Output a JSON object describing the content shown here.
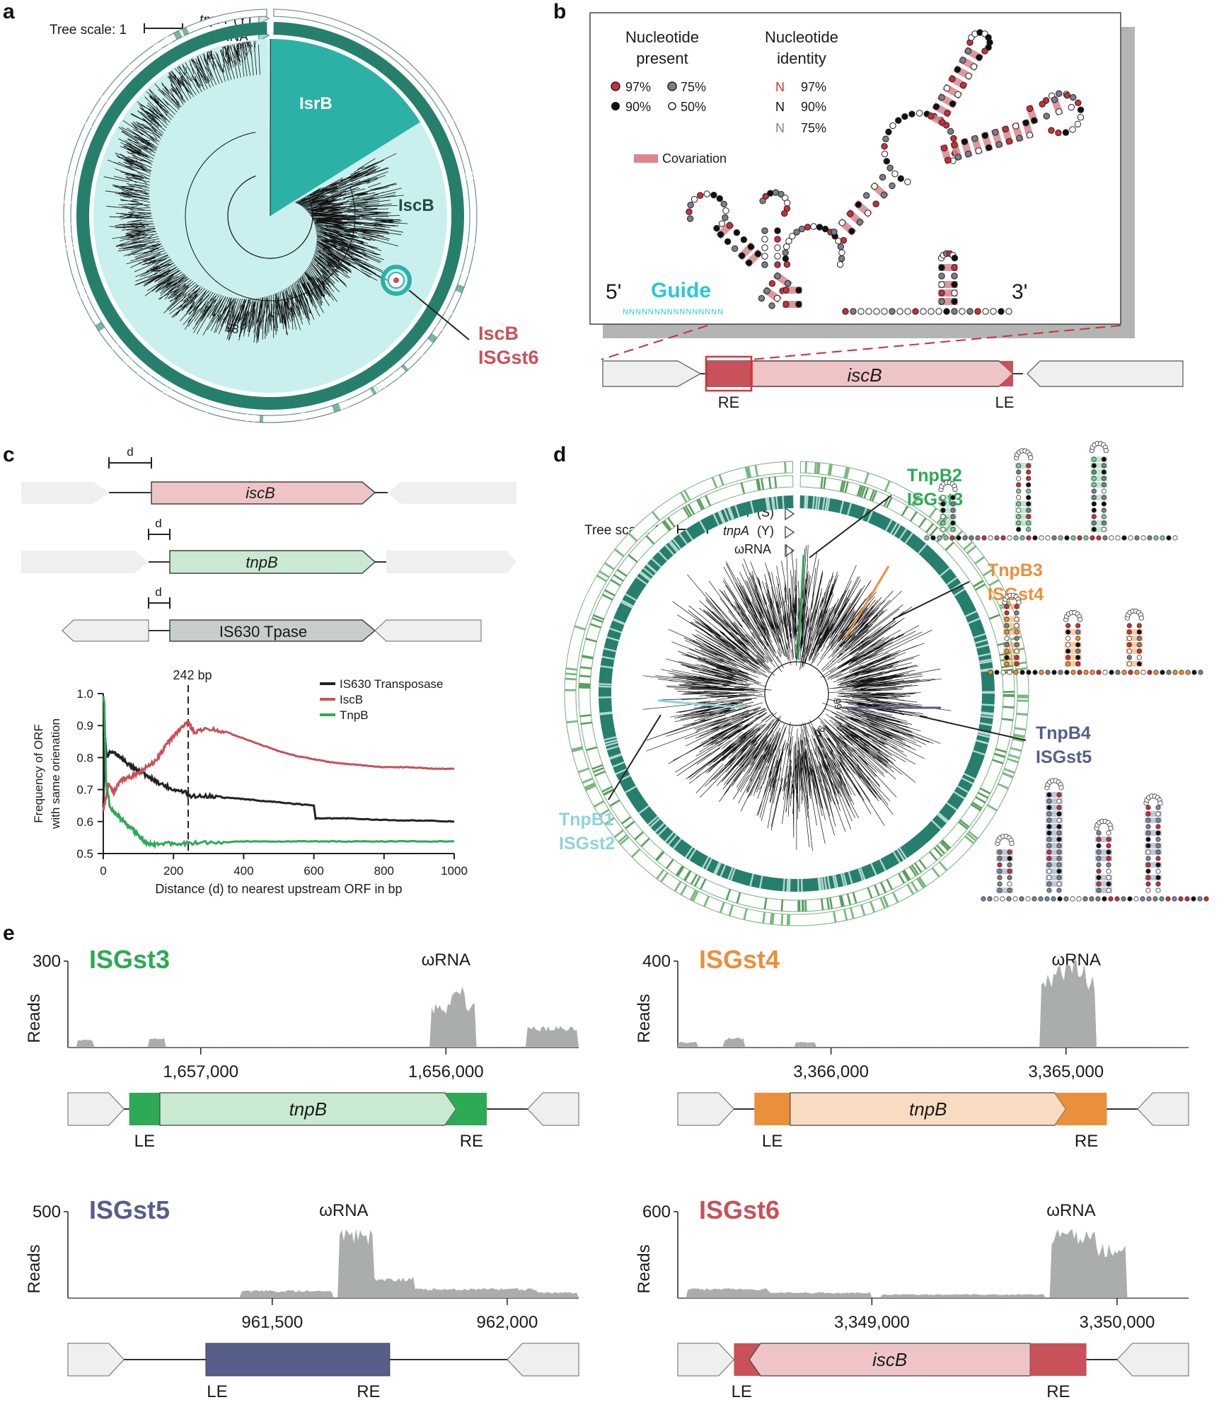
{
  "panels": {
    "a": "a",
    "b": "b",
    "c": "c",
    "d": "d",
    "e": "e"
  },
  "colors": {
    "teal_dark": "#267f6d",
    "teal_mid": "#2cb1a6",
    "teal_light": "#c9f0ef",
    "red": "#c8515a",
    "pink": "#eec4c6",
    "green": "#2ea955",
    "green_light": "#c9e9d1",
    "orange": "#ec8f3b",
    "orange_light": "#f8dcc2",
    "slate": "#565e8a",
    "gray_track": "#b5bcb9",
    "cyan_text": "#28c8d6"
  },
  "a": {
    "tree_scale": "Tree scale: 1",
    "ring_tnpA": "tnpA",
    "ring_tnpA_suffix": "(Y)",
    "ring_omega": "ωRNA",
    "clade_isrb": "IsrB",
    "clade_iscb": "IscB",
    "bootstrap": "98",
    "callout_1": "IscB",
    "callout_2": "ISGst6"
  },
  "b": {
    "legend_present_1": "Nucleotide",
    "legend_present_2": "present",
    "legend_identity_1": "Nucleotide",
    "legend_identity_2": "identity",
    "present_97": "97%",
    "present_75": "75%",
    "present_90": "90%",
    "present_50": "50%",
    "id_97_letter": "N",
    "id_97": "97%",
    "id_90_letter": "N",
    "id_90": "90%",
    "id_75_letter": "N",
    "id_75": "75%",
    "covariation": "Covariation",
    "five_prime": "5'",
    "three_prime": "3'",
    "guide": "Guide",
    "guide_seq": "NNNNNNNNNNNNNNNN",
    "gene": "iscB",
    "re": "RE",
    "le": "LE"
  },
  "c": {
    "d_label": "d",
    "genes": [
      "iscB",
      "tnpB",
      "IS630 Tpase"
    ],
    "bp_marker": "242 bp",
    "legend": [
      "IS630 Transposase",
      "IscB",
      "TnpB"
    ]
  },
  "chart_data": {
    "type": "line",
    "title": "",
    "xlabel": "Distance (d) to nearest upstream ORF in bp",
    "ylabel_1": "Frequency of ORF",
    "ylabel_2": "with same orienation",
    "xlim": [
      0,
      1000
    ],
    "ylim": [
      0.5,
      1.0
    ],
    "xticks": [
      0,
      200,
      400,
      600,
      800,
      1000
    ],
    "xtick_labels": [
      "0",
      "200",
      "400",
      "600",
      "800",
      "1000"
    ],
    "yticks": [
      0.5,
      0.6,
      0.7,
      0.8,
      0.9,
      1.0
    ],
    "ytick_labels": [
      "0.5",
      "0.6",
      "0.7",
      "0.8",
      "0.9",
      "1.0"
    ],
    "marker_x": 242,
    "series": [
      {
        "name": "IS630 Transposase",
        "color": "#222222",
        "x": [
          0,
          5,
          10,
          20,
          40,
          60,
          80,
          100,
          130,
          160,
          200,
          240,
          242,
          300,
          350,
          400,
          450,
          500,
          550,
          600,
          605,
          650,
          700,
          800,
          900,
          1000
        ],
        "y": [
          0.65,
          0.86,
          0.8,
          0.82,
          0.81,
          0.79,
          0.77,
          0.76,
          0.74,
          0.72,
          0.7,
          0.69,
          0.68,
          0.68,
          0.675,
          0.67,
          0.665,
          0.66,
          0.655,
          0.65,
          0.61,
          0.61,
          0.61,
          0.605,
          0.603,
          0.6
        ]
      },
      {
        "name": "IscB",
        "color": "#c8515a",
        "x": [
          0,
          5,
          15,
          30,
          50,
          80,
          110,
          150,
          180,
          210,
          242,
          260,
          300,
          350,
          400,
          450,
          500,
          550,
          600,
          650,
          700,
          750,
          800,
          850,
          900,
          950,
          1000
        ],
        "y": [
          0.64,
          0.66,
          0.72,
          0.69,
          0.73,
          0.74,
          0.76,
          0.79,
          0.84,
          0.88,
          0.91,
          0.88,
          0.89,
          0.88,
          0.86,
          0.84,
          0.82,
          0.805,
          0.795,
          0.785,
          0.78,
          0.775,
          0.77,
          0.77,
          0.768,
          0.765,
          0.765
        ]
      },
      {
        "name": "TnpB",
        "color": "#2ea955",
        "x": [
          0,
          3,
          8,
          20,
          40,
          60,
          80,
          100,
          110,
          120,
          130,
          150,
          200,
          242,
          300,
          400,
          500,
          600,
          700,
          800,
          900,
          1000
        ],
        "y": [
          0.99,
          0.97,
          0.72,
          0.64,
          0.62,
          0.6,
          0.58,
          0.555,
          0.545,
          0.535,
          0.528,
          0.53,
          0.532,
          0.532,
          0.533,
          0.538,
          0.538,
          0.538,
          0.538,
          0.538,
          0.538,
          0.538
        ]
      }
    ]
  },
  "d": {
    "tree_scale": "Tree scale: 1",
    "ring_1": "tnpA",
    "ring_1_suffix": "(S)",
    "ring_2": "tnpA",
    "ring_2_suffix": "(Y)",
    "ring_3": "ωRNA",
    "b2_1": "TnpB2",
    "b2_2": "ISGst3",
    "b3_1": "TnpB3",
    "b3_2": "ISGst4",
    "b4_1": "TnpB4",
    "b4_2": "ISGst5",
    "b1_1": "TnpB1",
    "b1_2": "ISGst2",
    "bootstrap_1": "99",
    "bootstrap_2": "90"
  },
  "e": {
    "ylabel": "Reads",
    "omega": "ωRNA",
    "tracks": [
      {
        "name": "ISGst3",
        "ymax": "300",
        "tick1": "1,657,000",
        "tick2": "1,656,000",
        "gene": "tnpB",
        "le": "LE",
        "re": "RE"
      },
      {
        "name": "ISGst4",
        "ymax": "400",
        "tick1": "3,366,000",
        "tick2": "3,365,000",
        "gene": "tnpB",
        "le": "LE",
        "re": "RE"
      },
      {
        "name": "ISGst5",
        "ymax": "500",
        "tick1": "961,500",
        "tick2": "962,000",
        "gene": "",
        "le": "LE",
        "re": "RE"
      },
      {
        "name": "ISGst6",
        "ymax": "600",
        "tick1": "3,349,000",
        "tick2": "3,350,000",
        "gene": "iscB",
        "le": "LE",
        "re": "RE"
      }
    ]
  }
}
